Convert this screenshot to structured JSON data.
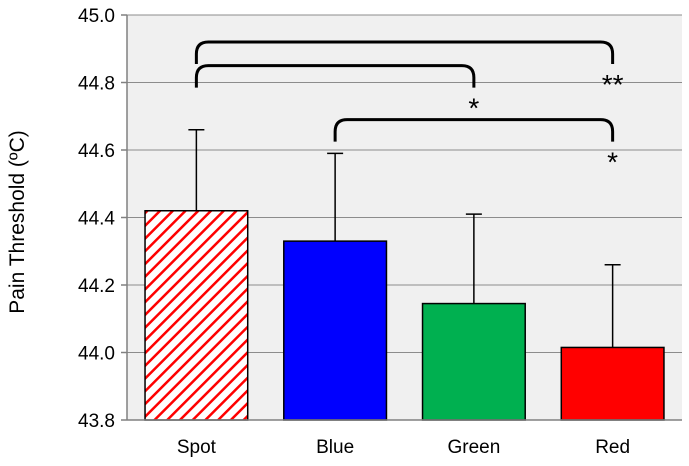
{
  "chart_data": {
    "type": "bar",
    "title": "",
    "xlabel": "",
    "ylabel": "Pain Threshold  (ºC)",
    "ylim": [
      43.8,
      45.0
    ],
    "yticks": [
      "43.8",
      "44.0",
      "44.2",
      "44.4",
      "44.6",
      "44.8",
      "45.0"
    ],
    "grid": "horizontal",
    "plot_background": "#f0f0f0",
    "categories": [
      "Spot",
      "Blue",
      "Green",
      "Red"
    ],
    "values": [
      44.42,
      44.33,
      44.145,
      44.015
    ],
    "error_upper": [
      0.24,
      0.26,
      0.265,
      0.245
    ],
    "colors": [
      "#ff0000",
      "#0000ff",
      "#00b050",
      "#ff0000"
    ],
    "patterns": [
      "diagonal-hatch",
      "solid",
      "solid",
      "solid"
    ],
    "significance": [
      {
        "from": "Spot",
        "to": "Red",
        "label": "**",
        "level": 44.92
      },
      {
        "from": "Spot",
        "to": "Green",
        "label": "*",
        "level": 44.85
      },
      {
        "from": "Blue",
        "to": "Red",
        "label": "*",
        "level": 44.69
      }
    ]
  }
}
